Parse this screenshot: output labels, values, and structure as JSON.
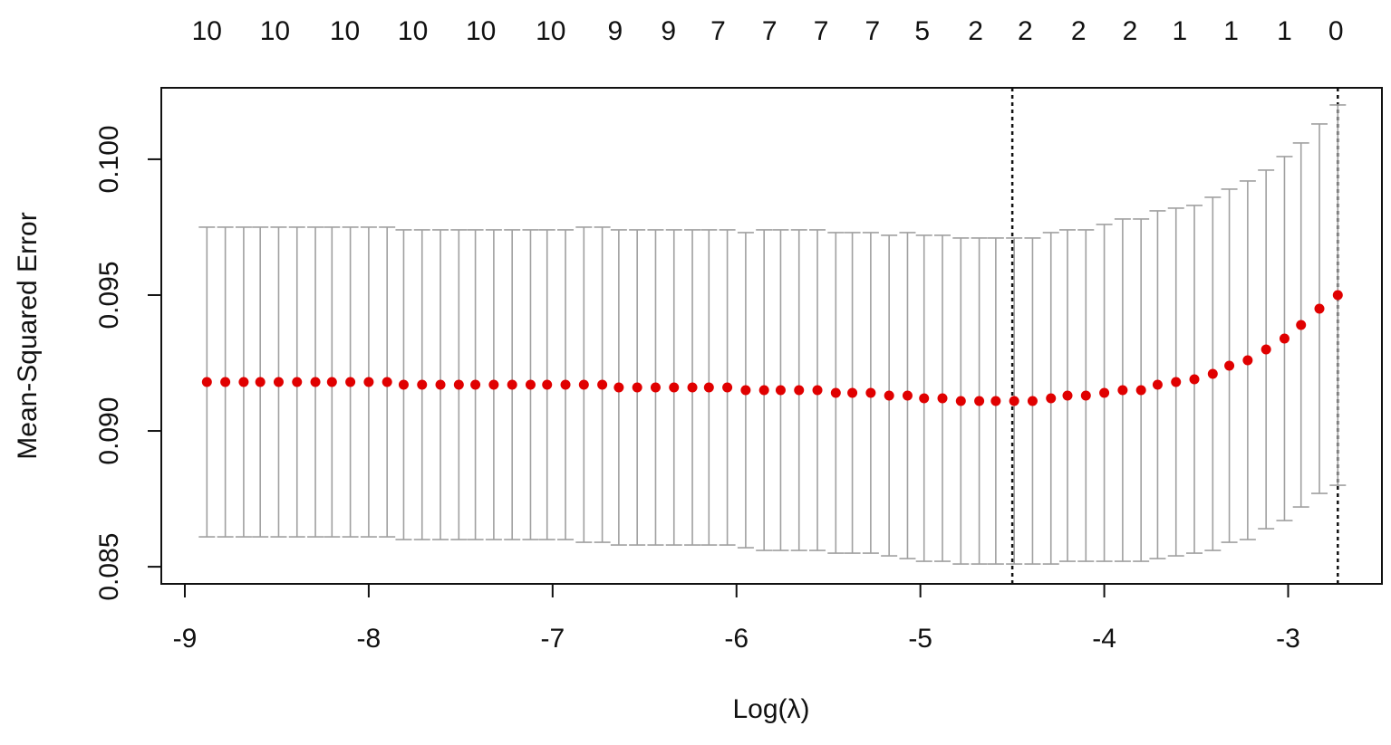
{
  "chart_data": {
    "type": "errorbar",
    "x_label": "Log(λ)",
    "y_label": "Mean-Squared Error",
    "x": [
      -8.88,
      -8.78,
      -8.68,
      -8.59,
      -8.49,
      -8.39,
      -8.29,
      -8.2,
      -8.1,
      -8.0,
      -7.9,
      -7.81,
      -7.71,
      -7.61,
      -7.51,
      -7.42,
      -7.32,
      -7.22,
      -7.12,
      -7.03,
      -6.93,
      -6.83,
      -6.73,
      -6.64,
      -6.54,
      -6.44,
      -6.34,
      -6.24,
      -6.15,
      -6.05,
      -5.95,
      -5.85,
      -5.76,
      -5.66,
      -5.56,
      -5.46,
      -5.37,
      -5.27,
      -5.17,
      -5.07,
      -4.98,
      -4.88,
      -4.78,
      -4.68,
      -4.59,
      -4.49,
      -4.39,
      -4.29,
      -4.2,
      -4.1,
      -4.0,
      -3.9,
      -3.8,
      -3.71,
      -3.61,
      -3.51,
      -3.41,
      -3.32,
      -3.22,
      -3.12,
      -3.02,
      -2.93,
      -2.83,
      -2.73
    ],
    "series": [
      {
        "color": "#e00000",
        "error_color": "#a0a0a0",
        "values": [
          0.0918,
          0.0918,
          0.0918,
          0.0918,
          0.0918,
          0.0918,
          0.0918,
          0.0918,
          0.0918,
          0.0918,
          0.0918,
          0.0917,
          0.0917,
          0.0917,
          0.0917,
          0.0917,
          0.0917,
          0.0917,
          0.0917,
          0.0917,
          0.0917,
          0.0917,
          0.0917,
          0.0916,
          0.0916,
          0.0916,
          0.0916,
          0.0916,
          0.0916,
          0.0916,
          0.0915,
          0.0915,
          0.0915,
          0.0915,
          0.0915,
          0.0914,
          0.0914,
          0.0914,
          0.0913,
          0.0913,
          0.0912,
          0.0912,
          0.0911,
          0.0911,
          0.0911,
          0.0911,
          0.0911,
          0.0912,
          0.0913,
          0.0913,
          0.0914,
          0.0915,
          0.0915,
          0.0917,
          0.0918,
          0.0919,
          0.0921,
          0.0924,
          0.0926,
          0.093,
          0.0934,
          0.0939,
          0.0945,
          0.095
        ],
        "errors": [
          0.0057,
          0.0057,
          0.0057,
          0.0057,
          0.0057,
          0.0057,
          0.0057,
          0.0057,
          0.0057,
          0.0057,
          0.0057,
          0.0057,
          0.0057,
          0.0057,
          0.0057,
          0.0057,
          0.0057,
          0.0057,
          0.0057,
          0.0057,
          0.0057,
          0.0058,
          0.0058,
          0.0058,
          0.0058,
          0.0058,
          0.0058,
          0.0058,
          0.0058,
          0.0058,
          0.0058,
          0.0059,
          0.0059,
          0.0059,
          0.0059,
          0.0059,
          0.0059,
          0.0059,
          0.0059,
          0.006,
          0.006,
          0.006,
          0.006,
          0.006,
          0.006,
          0.006,
          0.006,
          0.0061,
          0.0061,
          0.0061,
          0.0062,
          0.0063,
          0.0063,
          0.0064,
          0.0064,
          0.0064,
          0.0065,
          0.0065,
          0.0066,
          0.0066,
          0.0067,
          0.0067,
          0.0068,
          0.007
        ]
      }
    ],
    "vlines": [
      -4.5,
      -2.73
    ],
    "top_x": [
      -8.88,
      -8.51,
      -8.13,
      -7.76,
      -7.39,
      -7.01,
      -6.66,
      -6.37,
      -6.1,
      -5.82,
      -5.54,
      -5.26,
      -4.99,
      -4.7,
      -4.43,
      -4.14,
      -3.86,
      -3.59,
      -3.31,
      -3.02,
      -2.74
    ],
    "top_labels": [
      10,
      10,
      10,
      10,
      10,
      10,
      9,
      9,
      7,
      7,
      7,
      7,
      5,
      2,
      2,
      2,
      2,
      1,
      1,
      1,
      0
    ],
    "xlim": [
      -9.128,
      -2.49
    ],
    "xticks": [
      -9,
      -8,
      -7,
      -6,
      -5,
      -4,
      -3
    ],
    "ylim": [
      0.08437,
      0.10263
    ],
    "yticks": [
      0.085,
      {
        "value": 0.09,
        "label": "0.090"
      },
      0.095,
      {
        "value": 0.1,
        "label": "0.100"
      }
    ]
  }
}
